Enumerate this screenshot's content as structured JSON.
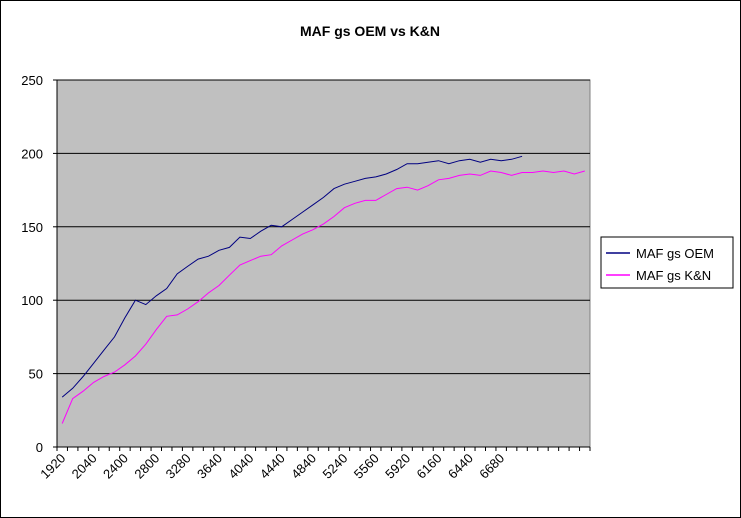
{
  "chart_data": {
    "type": "line",
    "title": "MAF gs OEM vs K&N",
    "categories": [
      "1920",
      null,
      null,
      "2040",
      null,
      null,
      "2400",
      null,
      null,
      "2800",
      null,
      null,
      "3280",
      null,
      null,
      "3640",
      null,
      null,
      "4040",
      null,
      null,
      "4440",
      null,
      null,
      "4840",
      null,
      null,
      "5240",
      null,
      null,
      "5560",
      null,
      null,
      "5920",
      null,
      null,
      "6160",
      null,
      null,
      "6440",
      null,
      null,
      "6680",
      null,
      null,
      null,
      null,
      null,
      null,
      null,
      null
    ],
    "series": [
      {
        "name": "MAF gs OEM",
        "color": "#000080",
        "values": [
          34,
          40,
          48,
          57,
          66,
          75,
          88,
          100,
          97,
          103,
          108,
          118,
          123,
          128,
          130,
          134,
          136,
          143,
          142,
          147,
          151,
          150,
          155,
          160,
          165,
          170,
          176,
          179,
          181,
          183,
          184,
          186,
          189,
          193,
          193,
          194,
          195,
          193,
          195,
          196,
          194,
          196,
          195,
          196,
          198,
          null,
          null,
          null,
          null,
          null,
          null
        ]
      },
      {
        "name": "MAF gs K&N",
        "color": "#ff00ff",
        "values": [
          16,
          33,
          38,
          44,
          48,
          51,
          56,
          62,
          70,
          80,
          89,
          90,
          94,
          99,
          105,
          110,
          117,
          124,
          127,
          130,
          131,
          137,
          141,
          145,
          148,
          152,
          157,
          163,
          166,
          168,
          168,
          172,
          176,
          177,
          175,
          178,
          182,
          183,
          185,
          186,
          185,
          188,
          187,
          185,
          187,
          187,
          188,
          187,
          188,
          186,
          188
        ]
      }
    ],
    "ylim": [
      0,
      250
    ],
    "yticks": [
      0,
      50,
      100,
      150,
      200,
      250
    ],
    "grid": true,
    "legend": "right",
    "plot_background": "#c0c0c0"
  }
}
